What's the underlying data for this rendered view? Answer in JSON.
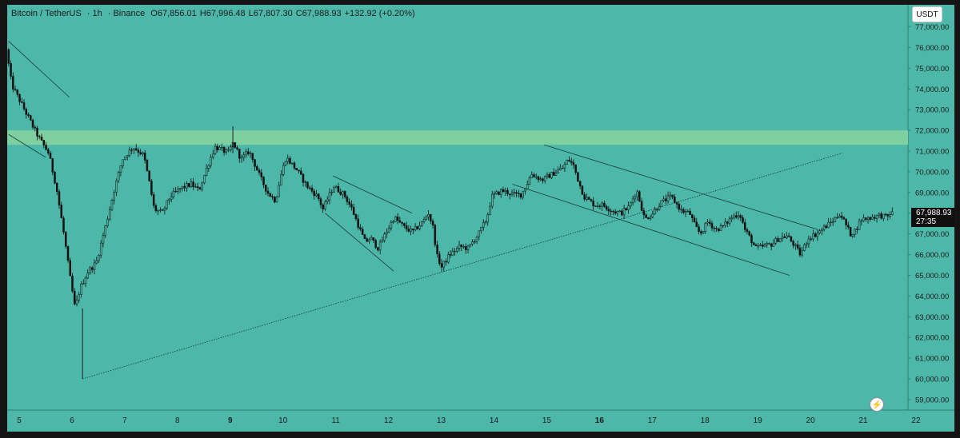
{
  "legend": {
    "symbol": "Bitcoin / TetherUS",
    "interval": "1h",
    "exchange": "Binance",
    "open": "67,856.01",
    "high": "67,996.48",
    "low": "67,807.30",
    "close": "67,988.93",
    "change": "+132.92 (+0.20%)"
  },
  "currency_button": "USDT",
  "last_price": {
    "price": "67,988.93",
    "countdown": "27:35"
  },
  "colors": {
    "background": "#4db7a9",
    "frame": "#141414",
    "zone": "#7ed0a0",
    "candle": "#111111",
    "text": "#1c1c1c"
  },
  "icons": {
    "alert_button": "lightning-bolt-icon"
  },
  "chart_data": {
    "type": "candlestick",
    "interval": "1h",
    "xlim": [
      4.8,
      22.1
    ],
    "ylim": [
      58500,
      77300
    ],
    "y_ticks": [
      "77,000.00",
      "76,000.00",
      "75,000.00",
      "74,000.00",
      "73,000.00",
      "72,000.00",
      "71,000.00",
      "70,000.00",
      "69,000.00",
      "68,000.00",
      "67,000.00",
      "66,000.00",
      "65,000.00",
      "64,000.00",
      "63,000.00",
      "62,000.00",
      "61,000.00",
      "60,000.00",
      "59,000.00"
    ],
    "x_ticks": [
      {
        "day": 5,
        "label": "5"
      },
      {
        "day": 6,
        "label": "6"
      },
      {
        "day": 7,
        "label": "7"
      },
      {
        "day": 8,
        "label": "8"
      },
      {
        "day": 9,
        "label": "9",
        "bold": true
      },
      {
        "day": 10,
        "label": "10"
      },
      {
        "day": 11,
        "label": "11"
      },
      {
        "day": 12,
        "label": "12"
      },
      {
        "day": 13,
        "label": "13"
      },
      {
        "day": 14,
        "label": "14"
      },
      {
        "day": 15,
        "label": "15"
      },
      {
        "day": 16,
        "label": "16",
        "bold": true
      },
      {
        "day": 17,
        "label": "17"
      },
      {
        "day": 18,
        "label": "18"
      },
      {
        "day": 19,
        "label": "19"
      },
      {
        "day": 20,
        "label": "20"
      },
      {
        "day": 21,
        "label": "21"
      },
      {
        "day": 22,
        "label": "22"
      }
    ],
    "path": [
      [
        4.8,
        75900
      ],
      [
        4.9,
        74200
      ],
      [
        5.1,
        73200
      ],
      [
        5.4,
        71700
      ],
      [
        5.6,
        70900
      ],
      [
        5.75,
        69200
      ],
      [
        5.9,
        66800
      ],
      [
        6.0,
        65000
      ],
      [
        6.1,
        63400
      ],
      [
        6.2,
        64400
      ],
      [
        6.35,
        65200
      ],
      [
        6.5,
        65600
      ],
      [
        6.7,
        67600
      ],
      [
        6.85,
        69200
      ],
      [
        7.0,
        70600
      ],
      [
        7.2,
        71200
      ],
      [
        7.4,
        70800
      ],
      [
        7.5,
        69600
      ],
      [
        7.6,
        68200
      ],
      [
        7.75,
        68000
      ],
      [
        7.9,
        68800
      ],
      [
        8.1,
        69200
      ],
      [
        8.3,
        69400
      ],
      [
        8.45,
        69100
      ],
      [
        8.6,
        70200
      ],
      [
        8.75,
        71200
      ],
      [
        8.85,
        71100
      ],
      [
        9.0,
        70900
      ],
      [
        9.1,
        71400
      ],
      [
        9.25,
        70600
      ],
      [
        9.4,
        71000
      ],
      [
        9.6,
        69800
      ],
      [
        9.75,
        69000
      ],
      [
        9.9,
        68600
      ],
      [
        10.0,
        69800
      ],
      [
        10.1,
        70700
      ],
      [
        10.3,
        70100
      ],
      [
        10.5,
        69300
      ],
      [
        10.7,
        68800
      ],
      [
        10.8,
        68200
      ],
      [
        11.0,
        69300
      ],
      [
        11.2,
        68900
      ],
      [
        11.35,
        68200
      ],
      [
        11.5,
        67200
      ],
      [
        11.6,
        66600
      ],
      [
        11.7,
        66800
      ],
      [
        11.85,
        66300
      ],
      [
        12.0,
        67100
      ],
      [
        12.15,
        67800
      ],
      [
        12.35,
        67300
      ],
      [
        12.5,
        67100
      ],
      [
        12.7,
        67600
      ],
      [
        12.8,
        68000
      ],
      [
        12.9,
        67200
      ],
      [
        12.95,
        66000
      ],
      [
        13.05,
        65400
      ],
      [
        13.2,
        66000
      ],
      [
        13.4,
        66400
      ],
      [
        13.55,
        66300
      ],
      [
        13.75,
        67000
      ],
      [
        13.9,
        67700
      ],
      [
        14.0,
        68800
      ],
      [
        14.2,
        69100
      ],
      [
        14.4,
        68900
      ],
      [
        14.55,
        68900
      ],
      [
        14.65,
        69300
      ],
      [
        14.75,
        69900
      ],
      [
        14.95,
        69600
      ],
      [
        15.15,
        69900
      ],
      [
        15.35,
        70200
      ],
      [
        15.45,
        70600
      ],
      [
        15.55,
        70300
      ],
      [
        15.65,
        69500
      ],
      [
        15.75,
        68800
      ],
      [
        15.95,
        68400
      ],
      [
        16.1,
        68400
      ],
      [
        16.3,
        68100
      ],
      [
        16.45,
        68000
      ],
      [
        16.6,
        68300
      ],
      [
        16.75,
        69100
      ],
      [
        16.9,
        67700
      ],
      [
        17.05,
        68000
      ],
      [
        17.2,
        68500
      ],
      [
        17.4,
        68800
      ],
      [
        17.6,
        68100
      ],
      [
        17.75,
        68000
      ],
      [
        17.85,
        67400
      ],
      [
        17.95,
        67000
      ],
      [
        18.1,
        67600
      ],
      [
        18.25,
        67200
      ],
      [
        18.4,
        67400
      ],
      [
        18.55,
        67800
      ],
      [
        18.7,
        68000
      ],
      [
        18.8,
        67200
      ],
      [
        18.9,
        66800
      ],
      [
        19.0,
        66300
      ],
      [
        19.15,
        66400
      ],
      [
        19.3,
        66500
      ],
      [
        19.45,
        66800
      ],
      [
        19.6,
        66900
      ],
      [
        19.75,
        66400
      ],
      [
        19.85,
        66000
      ],
      [
        20.0,
        66800
      ],
      [
        20.15,
        67000
      ],
      [
        20.35,
        67400
      ],
      [
        20.5,
        67700
      ],
      [
        20.6,
        68000
      ],
      [
        20.7,
        67500
      ],
      [
        20.8,
        67000
      ],
      [
        20.9,
        67200
      ],
      [
        21.0,
        67700
      ],
      [
        21.2,
        67800
      ],
      [
        21.35,
        67900
      ],
      [
        21.5,
        67800
      ],
      [
        21.55,
        67989
      ]
    ],
    "resistance_zone": [
      71300,
      72000
    ],
    "trendlines": [
      {
        "from": [
          4.8,
          76300
        ],
        "to": [
          5.95,
          73600
        ]
      },
      {
        "from": [
          4.8,
          71800
        ],
        "to": [
          5.5,
          70700
        ]
      },
      {
        "from": [
          6.2,
          60000
        ],
        "to": [
          20.6,
          70900
        ],
        "dashed": true
      },
      {
        "from": [
          10.8,
          68000
        ],
        "to": [
          12.1,
          65200
        ]
      },
      {
        "from": [
          10.95,
          69800
        ],
        "to": [
          12.45,
          68000
        ]
      },
      {
        "from": [
          14.35,
          69400
        ],
        "to": [
          19.6,
          65000
        ]
      },
      {
        "from": [
          14.95,
          71300
        ],
        "to": [
          20.15,
          67200
        ]
      }
    ]
  }
}
